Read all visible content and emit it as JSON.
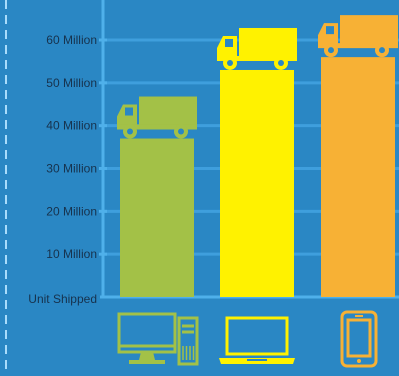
{
  "chart_data": {
    "type": "bar",
    "title": "",
    "xlabel": "",
    "ylabel": "Unit Shipped",
    "ylim": [
      0,
      60
    ],
    "yticks": [
      {
        "value": 10,
        "label": "10 Million"
      },
      {
        "value": 20,
        "label": "20 Million"
      },
      {
        "value": 30,
        "label": "30 Million"
      },
      {
        "value": 40,
        "label": "40 Million"
      },
      {
        "value": 50,
        "label": "50 Million"
      },
      {
        "value": 60,
        "label": "60 Million"
      }
    ],
    "grid": true,
    "categories": [
      "desktop",
      "laptop",
      "tablet"
    ],
    "values": [
      37,
      53,
      56
    ],
    "category_icons": [
      "desktop-computer-icon",
      "laptop-icon",
      "tablet-icon"
    ],
    "bar_decoration_icon": "delivery-truck-icon"
  },
  "colors": {
    "background": "#2a87c4",
    "axis_line": "#4fb0ea",
    "grid_line": "#3f9fdd",
    "dashed_border": "#a9dcfb",
    "label_text": "#17324d",
    "series": [
      "#a3c147",
      "#fff200",
      "#f7b135"
    ]
  }
}
